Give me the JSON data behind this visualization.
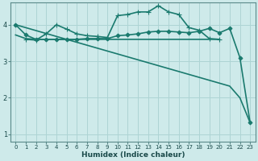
{
  "xlabel": "Humidex (Indice chaleur)",
  "bg_color": "#ceeaea",
  "grid_color": "#aed4d4",
  "line_color": "#1a7a6e",
  "xlim": [
    -0.5,
    23.5
  ],
  "ylim": [
    0.8,
    4.6
  ],
  "yticks": [
    1,
    2,
    3,
    4
  ],
  "xticks": [
    0,
    1,
    2,
    3,
    4,
    5,
    6,
    7,
    8,
    9,
    10,
    11,
    12,
    13,
    14,
    15,
    16,
    17,
    18,
    19,
    20,
    21,
    22,
    23
  ],
  "lines": [
    {
      "x": [
        0,
        1,
        2,
        3,
        4,
        5,
        6,
        7,
        8,
        9,
        10,
        11,
        12,
        13,
        14,
        15,
        16,
        17,
        18,
        19,
        20,
        21,
        22,
        23
      ],
      "y": [
        4.0,
        3.92,
        3.84,
        3.76,
        3.68,
        3.6,
        3.52,
        3.44,
        3.36,
        3.28,
        3.2,
        3.12,
        3.04,
        2.96,
        2.88,
        2.8,
        2.72,
        2.64,
        2.56,
        2.48,
        2.4,
        2.32,
        2.0,
        1.32
      ],
      "marker": null,
      "linewidth": 1.2
    },
    {
      "x": [
        0,
        1,
        2,
        3,
        4,
        5,
        6,
        7,
        8,
        9,
        10,
        11,
        12,
        13,
        14,
        15,
        16,
        17,
        18,
        19,
        20
      ],
      "y": [
        3.72,
        3.62,
        3.6,
        3.6,
        3.6,
        3.6,
        3.6,
        3.6,
        3.6,
        3.6,
        3.6,
        3.6,
        3.6,
        3.6,
        3.6,
        3.6,
        3.6,
        3.6,
        3.6,
        3.6,
        3.6
      ],
      "marker": null,
      "linewidth": 1.2
    },
    {
      "x": [
        0,
        1,
        2,
        3,
        4,
        5,
        6,
        7,
        8,
        9,
        10,
        11,
        12,
        13,
        14,
        15,
        16,
        17,
        18,
        19,
        20,
        21,
        22,
        23
      ],
      "y": [
        4.0,
        3.72,
        3.6,
        3.6,
        3.6,
        3.6,
        3.6,
        3.62,
        3.62,
        3.62,
        3.7,
        3.72,
        3.75,
        3.8,
        3.82,
        3.82,
        3.8,
        3.78,
        3.82,
        3.9,
        3.78,
        3.9,
        3.1,
        1.32
      ],
      "marker": "D",
      "markersize": 2.5,
      "linewidth": 1.2
    },
    {
      "x": [
        1,
        2,
        3,
        4,
        5,
        6,
        7,
        8,
        9,
        10,
        11,
        12,
        13,
        14,
        15,
        16,
        17,
        18,
        19,
        20
      ],
      "y": [
        3.6,
        3.58,
        3.75,
        4.0,
        3.88,
        3.75,
        3.7,
        3.68,
        3.65,
        4.25,
        4.28,
        4.35,
        4.35,
        4.52,
        4.35,
        4.28,
        3.92,
        3.85,
        3.62,
        3.6
      ],
      "marker": "+",
      "markersize": 4,
      "linewidth": 1.2
    }
  ]
}
